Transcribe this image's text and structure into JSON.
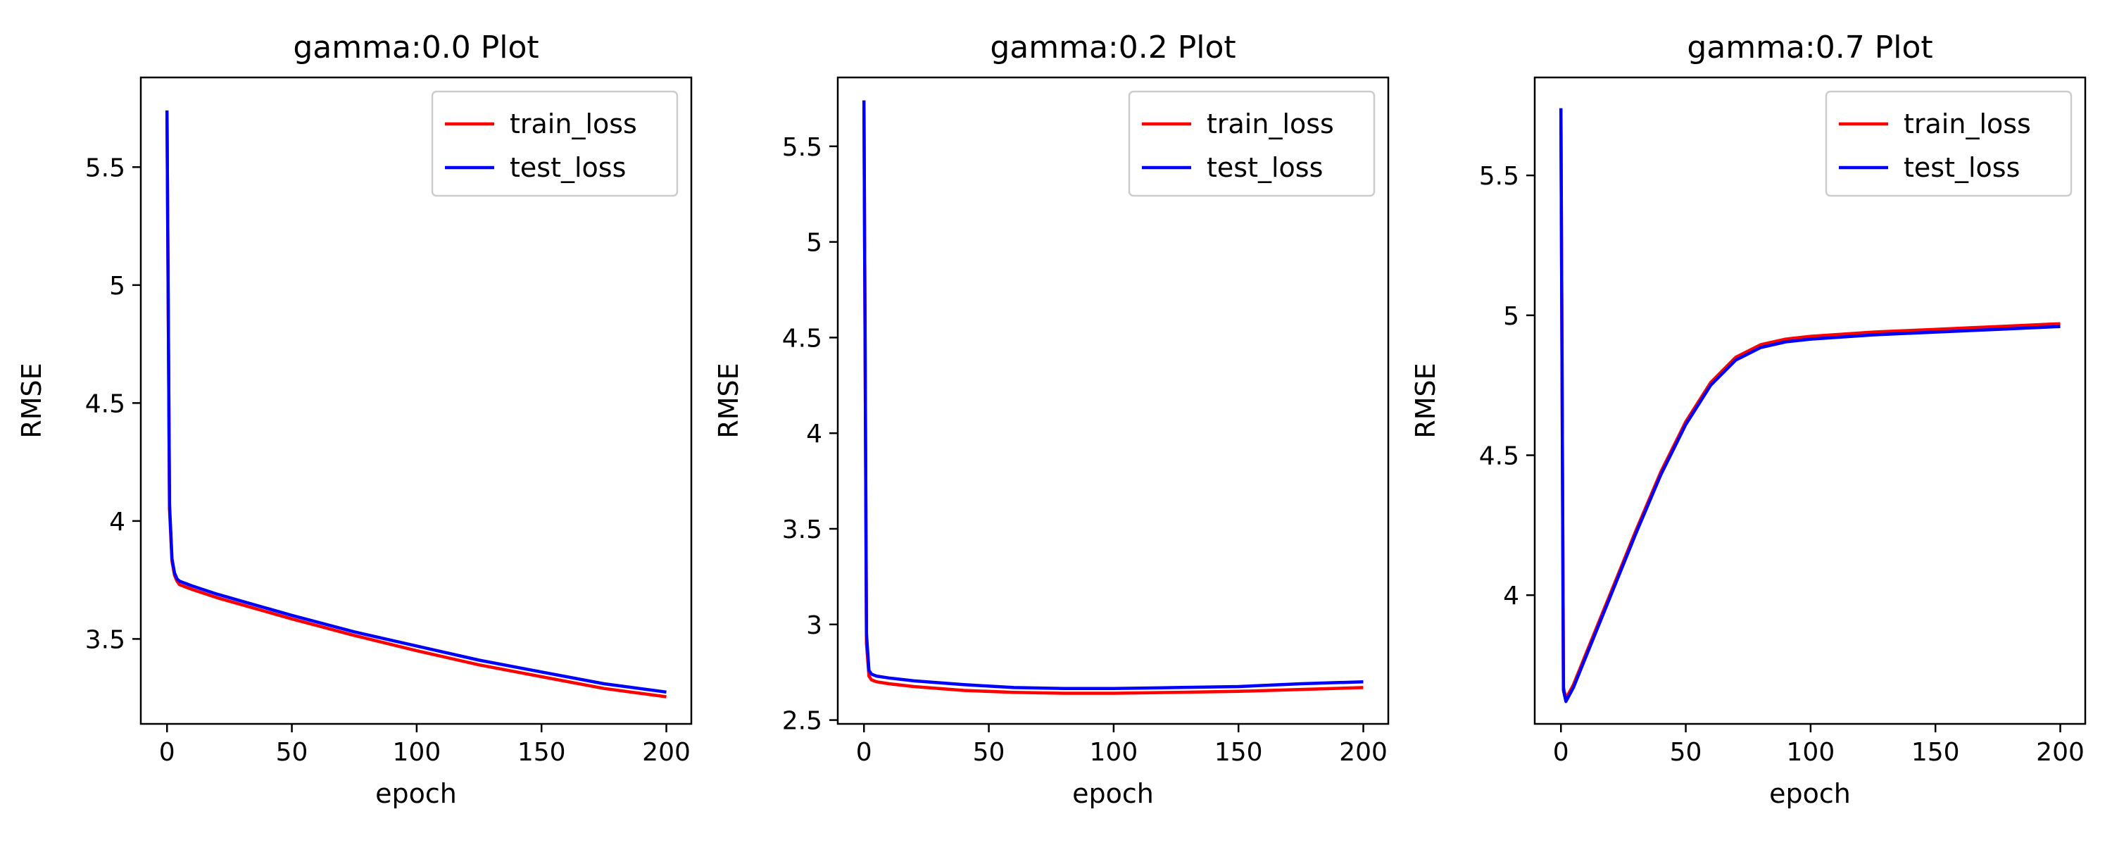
{
  "colors": {
    "train_loss": "#ff0000",
    "test_loss": "#0000ff"
  },
  "chart_data": [
    {
      "type": "line",
      "title": "gamma:0.0 Plot",
      "xlabel": "epoch",
      "ylabel": "RMSE",
      "xlim": [
        -10.5,
        210
      ],
      "ylim": [
        3.14,
        5.88
      ],
      "xticks": [
        0,
        50,
        100,
        150,
        200
      ],
      "yticks": [
        3.5,
        4.0,
        4.5,
        5.0,
        5.5
      ],
      "legend": "top-right",
      "grid": false,
      "series": [
        {
          "name": "train_loss",
          "color": "#ff0000",
          "x": [
            0,
            1,
            2,
            3,
            4,
            5,
            10,
            20,
            30,
            50,
            75,
            100,
            125,
            150,
            175,
            200
          ],
          "y": [
            5.74,
            4.05,
            3.83,
            3.77,
            3.745,
            3.73,
            3.71,
            3.675,
            3.645,
            3.585,
            3.515,
            3.45,
            3.39,
            3.34,
            3.29,
            3.255
          ]
        },
        {
          "name": "test_loss",
          "color": "#0000ff",
          "x": [
            0,
            1,
            2,
            3,
            4,
            5,
            10,
            20,
            30,
            50,
            75,
            100,
            125,
            150,
            175,
            200
          ],
          "y": [
            5.74,
            4.07,
            3.84,
            3.78,
            3.755,
            3.745,
            3.725,
            3.69,
            3.66,
            3.6,
            3.53,
            3.47,
            3.41,
            3.36,
            3.31,
            3.275
          ]
        }
      ]
    },
    {
      "type": "line",
      "title": "gamma:0.2 Plot",
      "xlabel": "epoch",
      "ylabel": "RMSE",
      "xlim": [
        -10.5,
        210
      ],
      "ylim": [
        2.48,
        5.86
      ],
      "xticks": [
        0,
        50,
        100,
        150,
        200
      ],
      "yticks": [
        2.5,
        3.0,
        3.5,
        4.0,
        4.5,
        5.0,
        5.5
      ],
      "legend": "top-right",
      "grid": false,
      "series": [
        {
          "name": "train_loss",
          "color": "#ff0000",
          "x": [
            0,
            1,
            2,
            3,
            5,
            10,
            20,
            40,
            60,
            80,
            100,
            125,
            150,
            175,
            200
          ],
          "y": [
            5.74,
            2.9,
            2.73,
            2.71,
            2.7,
            2.69,
            2.675,
            2.655,
            2.645,
            2.64,
            2.64,
            2.645,
            2.65,
            2.66,
            2.67
          ]
        },
        {
          "name": "test_loss",
          "color": "#0000ff",
          "x": [
            0,
            1,
            2,
            3,
            5,
            10,
            20,
            40,
            60,
            80,
            100,
            125,
            150,
            175,
            200
          ],
          "y": [
            5.74,
            2.95,
            2.76,
            2.74,
            2.73,
            2.72,
            2.705,
            2.685,
            2.67,
            2.665,
            2.665,
            2.67,
            2.675,
            2.69,
            2.7
          ]
        }
      ]
    },
    {
      "type": "line",
      "title": "gamma:0.7 Plot",
      "xlabel": "epoch",
      "ylabel": "RMSE",
      "xlim": [
        -10.5,
        210
      ],
      "ylim": [
        3.54,
        5.85
      ],
      "xticks": [
        0,
        50,
        100,
        150,
        200
      ],
      "yticks": [
        4.0,
        4.5,
        5.0,
        5.5
      ],
      "legend": "top-right",
      "grid": false,
      "series": [
        {
          "name": "train_loss",
          "color": "#ff0000",
          "x": [
            0,
            1,
            2,
            5,
            10,
            20,
            30,
            40,
            50,
            60,
            70,
            80,
            90,
            100,
            125,
            150,
            175,
            200
          ],
          "y": [
            5.74,
            3.67,
            3.63,
            3.68,
            3.79,
            4.01,
            4.23,
            4.44,
            4.62,
            4.76,
            4.85,
            4.895,
            4.915,
            4.925,
            4.94,
            4.95,
            4.96,
            4.97
          ]
        },
        {
          "name": "test_loss",
          "color": "#0000ff",
          "x": [
            0,
            1,
            2,
            5,
            10,
            20,
            30,
            40,
            50,
            60,
            70,
            80,
            90,
            100,
            125,
            150,
            175,
            200
          ],
          "y": [
            5.74,
            3.66,
            3.62,
            3.67,
            3.78,
            4.0,
            4.22,
            4.43,
            4.61,
            4.75,
            4.84,
            4.885,
            4.905,
            4.915,
            4.93,
            4.94,
            4.95,
            4.96
          ]
        }
      ]
    }
  ]
}
